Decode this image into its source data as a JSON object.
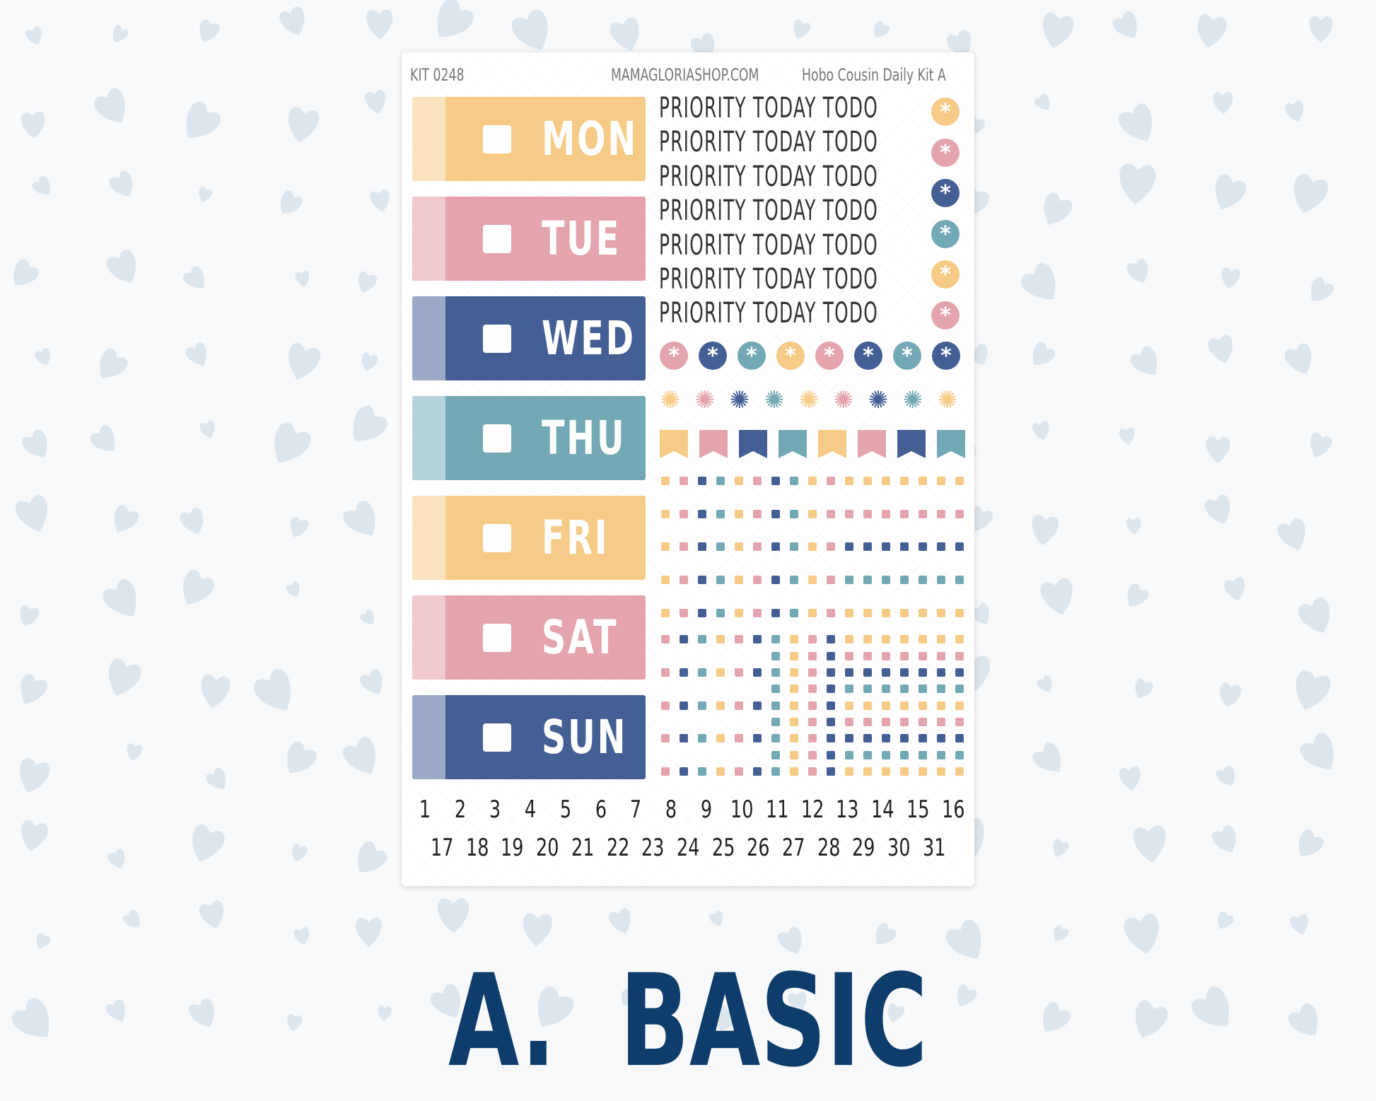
{
  "colors": {
    "yellow": "#f6cb87",
    "pink": "#e4a4ad",
    "blue": "#445f94",
    "teal": "#73a9b4",
    "heart": "#dee6ed",
    "title": "#0e3d6b"
  },
  "header": {
    "kit": "KIT 0248",
    "site": "MAMAGLORIASHOP.COM",
    "name": "Hobo Cousin Daily Kit A"
  },
  "days": [
    {
      "label": "MON",
      "color": "yellow"
    },
    {
      "label": "TUE",
      "color": "pink"
    },
    {
      "label": "WED",
      "color": "blue"
    },
    {
      "label": "THU",
      "color": "teal"
    },
    {
      "label": "FRI",
      "color": "yellow"
    },
    {
      "label": "SAT",
      "color": "pink"
    },
    {
      "label": "SUN",
      "color": "blue"
    }
  ],
  "priority": {
    "text": "PRIORITY TODAY TODO",
    "rows": 7,
    "icon_colors": [
      "yellow",
      "pink",
      "blue",
      "teal",
      "yellow",
      "pink"
    ]
  },
  "circle_row": [
    "pink",
    "blue",
    "teal",
    "yellow",
    "pink",
    "blue",
    "teal",
    "blue"
  ],
  "flower_row": [
    "yellow",
    "pink",
    "blue",
    "teal",
    "yellow",
    "pink",
    "blue",
    "teal",
    "yellow"
  ],
  "flag_row": [
    "yellow",
    "pink",
    "blue",
    "teal",
    "yellow",
    "pink",
    "blue",
    "teal"
  ],
  "numbers": {
    "row1": [
      "1",
      "2",
      "3",
      "4",
      "5",
      "6",
      "7",
      "8",
      "9",
      "10",
      "11",
      "12",
      "13",
      "14",
      "15",
      "16"
    ],
    "row2": [
      "17",
      "18",
      "19",
      "20",
      "21",
      "22",
      "23",
      "24",
      "25",
      "26",
      "27",
      "28",
      "29",
      "30",
      "31"
    ]
  },
  "title": "A.  BASIC"
}
